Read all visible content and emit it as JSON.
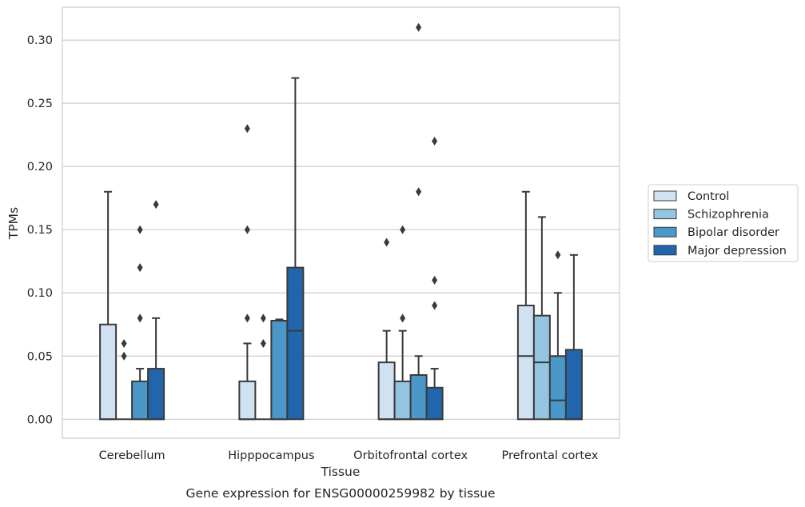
{
  "chart_data": {
    "type": "box",
    "caption": "Gene expression for ENSG00000259982 by tissue",
    "xlabel": "Tissue",
    "ylabel": "TPMs",
    "ylim": [
      -0.015,
      0.326
    ],
    "yticks": [
      0.0,
      0.05,
      0.1,
      0.15,
      0.2,
      0.25,
      0.3
    ],
    "ytick_labels": [
      "0.00",
      "0.05",
      "0.10",
      "0.15",
      "0.20",
      "0.25",
      "0.30"
    ],
    "grid": true,
    "legend_position": "right",
    "categories": [
      "Cerebellum",
      "Hipppocampus",
      "Orbitofrontal cortex",
      "Prefrontal cortex"
    ],
    "series": [
      {
        "name": "Control",
        "color": "#d0e1f2",
        "boxes": [
          {
            "min": 0,
            "q1": 0,
            "median": 0,
            "q3": 0.075,
            "max": 0.18,
            "outliers": []
          },
          {
            "min": 0,
            "q1": 0,
            "median": 0,
            "q3": 0.03,
            "max": 0.06,
            "outliers": [
              0.08,
              0.15,
              0.23
            ]
          },
          {
            "min": 0,
            "q1": 0,
            "median": 0,
            "q3": 0.045,
            "max": 0.07,
            "outliers": [
              0.14
            ]
          },
          {
            "min": 0,
            "q1": 0,
            "median": 0.05,
            "q3": 0.09,
            "max": 0.18,
            "outliers": []
          }
        ]
      },
      {
        "name": "Schizophrenia",
        "color": "#94c4df",
        "boxes": [
          {
            "min": 0,
            "q1": 0,
            "median": 0,
            "q3": 0,
            "max": 0,
            "outliers": [
              0.05,
              0.06
            ]
          },
          {
            "min": 0,
            "q1": 0,
            "median": 0,
            "q3": 0,
            "max": 0,
            "outliers": [
              0.06,
              0.08
            ]
          },
          {
            "min": 0,
            "q1": 0,
            "median": 0,
            "q3": 0.03,
            "max": 0.07,
            "outliers": [
              0.08,
              0.15
            ]
          },
          {
            "min": 0,
            "q1": 0,
            "median": 0.045,
            "q3": 0.082,
            "max": 0.16,
            "outliers": []
          }
        ]
      },
      {
        "name": "Bipolar disorder",
        "color": "#4a98c9",
        "boxes": [
          {
            "min": 0,
            "q1": 0,
            "median": 0,
            "q3": 0.03,
            "max": 0.04,
            "outliers": [
              0.08,
              0.12,
              0.15
            ]
          },
          {
            "min": 0,
            "q1": 0,
            "median": 0,
            "q3": 0.078,
            "max": 0.079,
            "outliers": []
          },
          {
            "min": 0,
            "q1": 0,
            "median": 0,
            "q3": 0.035,
            "max": 0.05,
            "outliers": [
              0.18,
              0.31
            ]
          },
          {
            "min": 0,
            "q1": 0,
            "median": 0.015,
            "q3": 0.05,
            "max": 0.1,
            "outliers": [
              0.13
            ]
          }
        ]
      },
      {
        "name": "Major depression",
        "color": "#2166ac",
        "boxes": [
          {
            "min": 0,
            "q1": 0,
            "median": 0,
            "q3": 0.04,
            "max": 0.08,
            "outliers": [
              0.17
            ]
          },
          {
            "min": 0,
            "q1": 0,
            "median": 0.07,
            "q3": 0.12,
            "max": 0.27,
            "outliers": []
          },
          {
            "min": 0,
            "q1": 0,
            "median": 0,
            "q3": 0.025,
            "max": 0.04,
            "outliers": [
              0.09,
              0.11,
              0.22
            ]
          },
          {
            "min": 0,
            "q1": 0,
            "median": 0,
            "q3": 0.055,
            "max": 0.13,
            "outliers": []
          }
        ]
      }
    ]
  }
}
